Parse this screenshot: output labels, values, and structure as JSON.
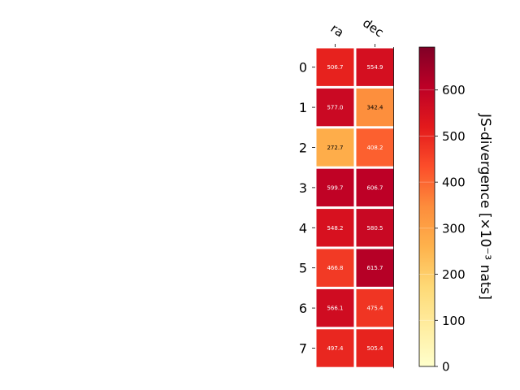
{
  "chart_data": {
    "type": "heatmap",
    "columns": [
      "ra",
      "dec"
    ],
    "rows": [
      "0",
      "1",
      "2",
      "3",
      "4",
      "5",
      "6",
      "7"
    ],
    "values": [
      [
        506.7,
        554.9
      ],
      [
        577.0,
        342.4
      ],
      [
        272.7,
        408.2
      ],
      [
        599.7,
        606.7
      ],
      [
        548.2,
        580.5
      ],
      [
        466.8,
        615.7
      ],
      [
        566.1,
        475.4
      ],
      [
        497.4,
        505.4
      ]
    ],
    "value_labels": [
      [
        "506.7",
        "554.9"
      ],
      [
        "577.0",
        "342.4"
      ],
      [
        "272.7",
        "408.2"
      ],
      [
        "599.7",
        "606.7"
      ],
      [
        "548.2",
        "580.5"
      ],
      [
        "466.8",
        "615.7"
      ],
      [
        "566.1",
        "475.4"
      ],
      [
        "497.4",
        "505.4"
      ]
    ],
    "colorbar": {
      "label": "JS-divergence [×10⁻³ nats]",
      "range": [
        0,
        693
      ],
      "ticks": [
        0,
        100,
        200,
        300,
        400,
        500,
        600
      ],
      "tick_labels": [
        "0",
        "100",
        "200",
        "300",
        "400",
        "500",
        "600"
      ],
      "colormap": "YlOrRd"
    }
  }
}
